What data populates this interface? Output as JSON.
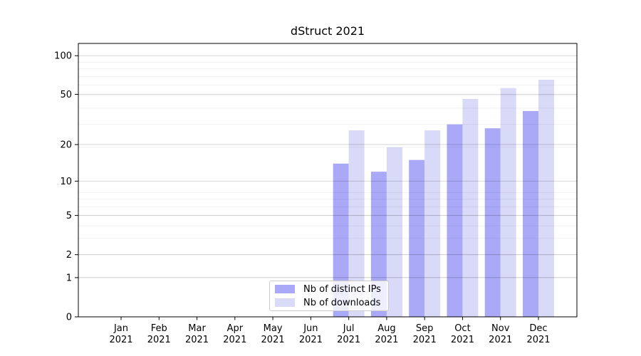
{
  "chart_data": {
    "type": "bar",
    "title": "dStruct 2021",
    "categories": [
      "Jan 2021",
      "Feb 2021",
      "Mar 2021",
      "Apr 2021",
      "May 2021",
      "Jun 2021",
      "Jul 2021",
      "Aug 2021",
      "Sep 2021",
      "Oct 2021",
      "Nov 2021",
      "Dec 2021"
    ],
    "series": [
      {
        "name": "Nb of distinct IPs",
        "color": "#a9a9f8",
        "values": [
          0,
          0,
          0,
          0,
          0,
          0,
          14,
          12,
          15,
          29,
          27,
          37
        ]
      },
      {
        "name": "Nb of downloads",
        "color": "#d9d9f8",
        "values": [
          0,
          0,
          0,
          0,
          0,
          0,
          26,
          19,
          26,
          46,
          56,
          65
        ]
      }
    ],
    "yscale": "log1p",
    "yticks": [
      0,
      1,
      2,
      5,
      10,
      20,
      50,
      100
    ],
    "ylim": [
      0,
      124
    ],
    "xlabel": "",
    "ylabel": "",
    "grid": true,
    "legend_position": "lower center",
    "colors": {
      "spine": "#000000",
      "tick_text": "#000000",
      "grid_major": "rgba(0,0,0,0.16)",
      "grid_minor": "rgba(0,0,0,0.055)",
      "background": "#ffffff"
    }
  }
}
